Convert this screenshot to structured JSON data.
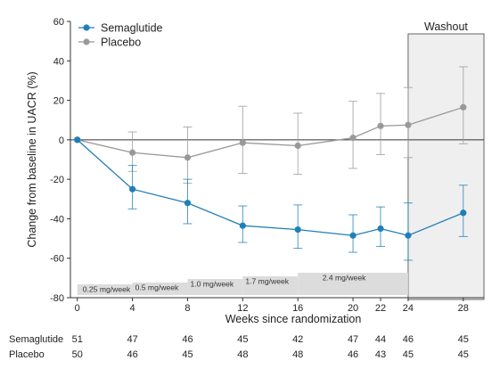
{
  "chart_data": {
    "type": "line",
    "xlabel": "Weeks since randomization",
    "ylabel": "Change from baseline in UACR (%)",
    "x_ticks": [
      0,
      4,
      8,
      12,
      16,
      20,
      22,
      24,
      28
    ],
    "y_ticks": [
      60,
      40,
      20,
      0,
      -20,
      -40,
      -60,
      -80
    ],
    "xlim": [
      -0.5,
      29.5
    ],
    "ylim": [
      -80,
      60
    ],
    "grid": false,
    "legend_position": "top-left",
    "series": [
      {
        "name": "Semaglutide",
        "color": "#1f7fb8",
        "x": [
          0,
          4,
          8,
          12,
          16,
          20,
          22,
          24,
          28
        ],
        "y": [
          0,
          -25,
          -32,
          -43.5,
          -45.5,
          -48.5,
          -45,
          -48.5,
          -37
        ],
        "err_low": [
          0,
          -35,
          -42.5,
          -52,
          -55,
          -57,
          -54,
          -61,
          -49
        ],
        "err_high": [
          0,
          -13,
          -20,
          -33.5,
          -33,
          -38,
          -34,
          -32,
          -23
        ]
      },
      {
        "name": "Placebo",
        "color": "#999999",
        "x": [
          0,
          4,
          8,
          12,
          16,
          20,
          22,
          24,
          28
        ],
        "y": [
          0,
          -6.5,
          -9,
          -1.5,
          -3,
          1,
          7,
          7.5,
          16.5
        ],
        "err_low": [
          0,
          -16,
          -22,
          -17,
          -17.5,
          -14.5,
          -7.5,
          -9,
          -2
        ],
        "err_high": [
          0,
          4,
          6.5,
          17,
          13.5,
          19.5,
          23.5,
          26.5,
          37
        ]
      }
    ],
    "washout": {
      "label": "Washout",
      "x_start": 24,
      "x_end": 29.5
    },
    "dose_bands": [
      {
        "label": "0.25 mg/week",
        "x_start": 0,
        "x_end": 4
      },
      {
        "label": "0.5 mg/week",
        "x_start": 4,
        "x_end": 8
      },
      {
        "label": "1.0 mg/week",
        "x_start": 8,
        "x_end": 12
      },
      {
        "label": "1.7 mg/week",
        "x_start": 12,
        "x_end": 16
      },
      {
        "label": "2.4 mg/week",
        "x_start": 16,
        "x_end": 24
      }
    ],
    "n_at_risk": [
      {
        "group": "Semaglutide",
        "values": [
          "51",
          "47",
          "46",
          "45",
          "42",
          "47",
          "44",
          "46",
          "45"
        ]
      },
      {
        "group": "Placebo",
        "values": [
          "50",
          "46",
          "45",
          "48",
          "48",
          "46",
          "43",
          "45",
          "45"
        ]
      }
    ]
  }
}
